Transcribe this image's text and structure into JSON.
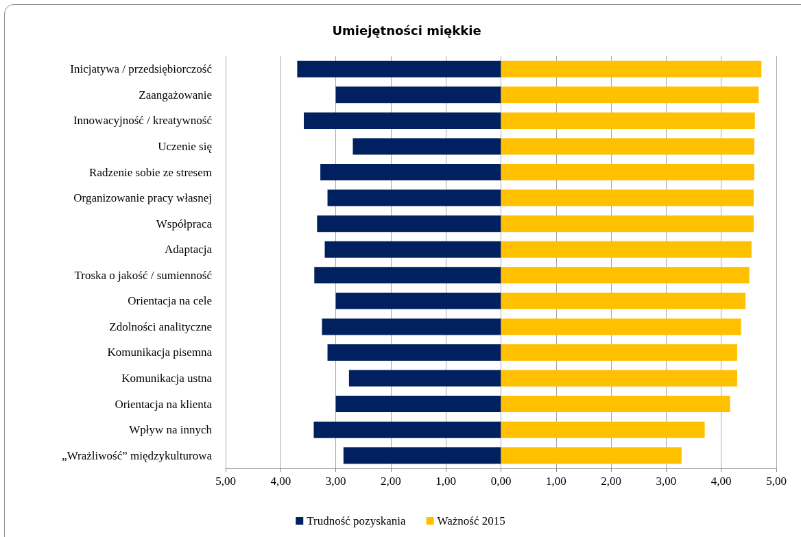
{
  "chart_data": {
    "type": "bar",
    "orientation": "horizontal",
    "title": "Umiejętności miękkie",
    "categories": [
      "Inicjatywa / przedsiębiorczość",
      "Zaangażowanie",
      "Innowacyjność / kreatywność",
      "Uczenie się",
      "Radzenie sobie ze stresem",
      "Organizowanie pracy własnej",
      "Współpraca",
      "Adaptacja",
      "Troska o jakość / sumienność",
      "Orientacja na cele",
      "Zdolności analityczne",
      "Komunikacja pisemna",
      "Komunikacja ustna",
      "Orientacja na klienta",
      "Wpływ na innych",
      "„Wrażliwość” międzykulturowa"
    ],
    "series": [
      {
        "name": "Trudność pozyskania",
        "color": "#002060",
        "values": [
          -3.7,
          -3.0,
          -3.58,
          -2.69,
          -3.28,
          -3.15,
          -3.34,
          -3.2,
          -3.39,
          -3.0,
          -3.25,
          -3.15,
          -2.76,
          -3.0,
          -3.4,
          -2.86
        ]
      },
      {
        "name": "Ważność 2015",
        "color": "#ffc000",
        "values": [
          4.73,
          4.68,
          4.61,
          4.6,
          4.6,
          4.59,
          4.59,
          4.55,
          4.51,
          4.44,
          4.36,
          4.29,
          4.29,
          4.16,
          3.7,
          3.28
        ]
      }
    ],
    "xlim": [
      -5,
      5
    ],
    "xticks": [
      {
        "value": -5,
        "label": "5,00"
      },
      {
        "value": -4,
        "label": "4,00"
      },
      {
        "value": -3,
        "label": "3,00"
      },
      {
        "value": -2,
        "label": "2,00"
      },
      {
        "value": -1,
        "label": "1,00"
      },
      {
        "value": 0,
        "label": "0,00"
      },
      {
        "value": 1,
        "label": "1,00"
      },
      {
        "value": 2,
        "label": "2,00"
      },
      {
        "value": 3,
        "label": "3,00"
      },
      {
        "value": 4,
        "label": "4,00"
      },
      {
        "value": 5,
        "label": "5,00"
      }
    ],
    "stacked": true,
    "grid": "x",
    "legend": "bottom"
  }
}
